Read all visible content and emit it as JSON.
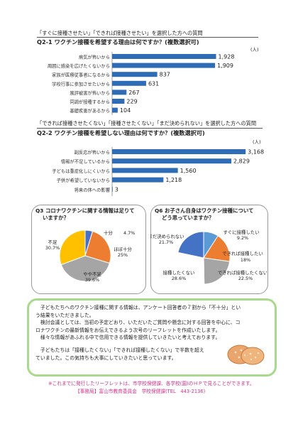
{
  "q2_1": {
    "line1": "「すぐに接種させたい」「できれば接種させたい」を選択した方への質問",
    "line2": "Q2-1 ワクチン接種を希望する理由は何ですか？(複数選択可)",
    "unit": "(人)"
  },
  "q2_2": {
    "line1": "「できれば接種させたくない」「接種させたくない」「まだ決められない」を選択した方への質問",
    "line2": "Q2-2 ワクチン接種を希望しない理由は何ですか？(複数選択可)",
    "unit": "(人)"
  },
  "q3": {
    "title": "Q3 コロナワクチンに関する情報は足りて\n　 いますか？"
  },
  "q6": {
    "title": "Q6 お子さん自身はワクチン接種について\n　 どう思っていますか？"
  },
  "message": {
    "p1": "　子どもたちへのワクチン接種に関する情報は、アンケート回答者の７割から「不十分」とい\nう結果をいただきました。\n　検討会議としては、当初の予定どおり、いただいたご質問や懸念に対する回答を中心に、コ\nロナワクチンの最新情報をお伝えできるよう次号のリーフレットを作成いたします。\n　様々な情報があふれる中で信用できる情報を提供していきたいと考えております。",
    "p2": "　子どもたちは「接種したくない」「できれば接種したくない」で半数を超え\nていました。この気持ちも大事にしていきたいと思っています。"
  },
  "footer": {
    "line1": "※これまでに発行したリーフレットは、市学校保健課、各学校(園)のＨＰで見ることができます。",
    "line2": "【事務局】富山市教育委員会　学校保健課(TEL　443-2136)"
  },
  "colors": {
    "bar": "#2e6db5",
    "yes": "#4a72c4",
    "somewhat": "#ed7d31",
    "little": "#a5a5a5",
    "no": "#ffc000",
    "pink": "#d0348b",
    "green_border": "#a9d98d"
  },
  "icons": {
    "illustration": "bread-illustration"
  },
  "chart_data": [
    {
      "type": "bar",
      "orientation": "horizontal",
      "categories": [
        "病気が怖いから",
        "周囲に感染を広げたくないから",
        "家族が医療従事者になるから",
        "学校行事に参加させたいから",
        "風評被害が怖いから",
        "同調が接種するから",
        "基礎疾患があるから"
      ],
      "values": [
        1928,
        1909,
        837,
        631,
        267,
        229,
        104
      ],
      "value_labels": [
        "1,928",
        "1,909",
        "837",
        "631",
        "267",
        "229",
        "104"
      ],
      "xlim": [
        0,
        2000
      ]
    },
    {
      "type": "bar",
      "orientation": "horizontal",
      "categories": [
        "副反応が怖いから",
        "情報が不足しているから",
        "子どもは重症化しにくいから",
        "子供が希望していないから",
        "将来の体への影響"
      ],
      "values": [
        3168,
        2829,
        1560,
        1218,
        3
      ],
      "value_labels": [
        "3,168",
        "2,829",
        "1,560",
        "1,218",
        "3"
      ],
      "xlim": [
        0,
        3300
      ]
    },
    {
      "type": "pie",
      "labels": [
        "十分",
        "ほぼ十分",
        "やや不足",
        "不足"
      ],
      "values": [
        4.7,
        25,
        39.6,
        30.7
      ],
      "value_labels": [
        "4.7%",
        "25%",
        "39.6%",
        "30.7%"
      ],
      "colors": [
        "#4a72c4",
        "#ed7d31",
        "#a5a5a5",
        "#ffc000"
      ]
    },
    {
      "type": "pie",
      "labels": [
        "すぐに接種したい",
        "できれば接種したい",
        "できれば接種したくない",
        "接種したくない",
        "まだ決められない"
      ],
      "values": [
        9.2,
        18,
        22.5,
        28.6,
        21.7
      ],
      "value_labels": [
        "9.2%",
        "18%",
        "22.5%",
        "28.6%",
        "21.7%"
      ],
      "colors": [
        "#5b9bd5",
        "#ed7d31",
        "#a5a5a5",
        "#ffffff",
        "#4472c4"
      ]
    }
  ]
}
